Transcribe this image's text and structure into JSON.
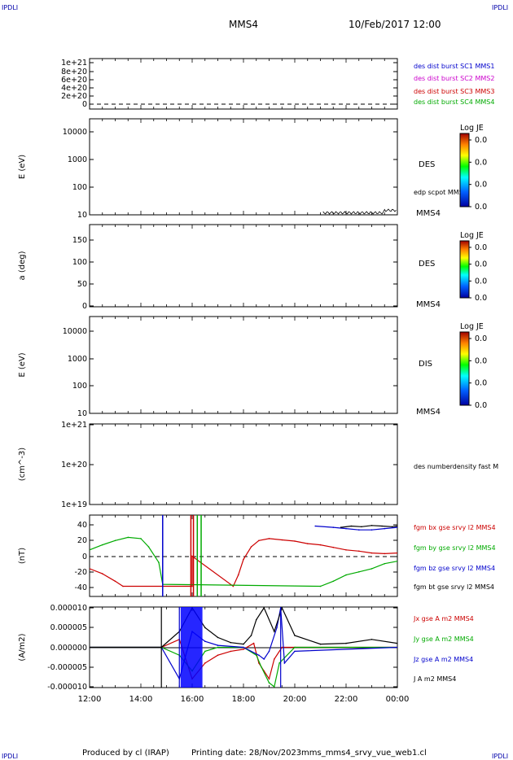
{
  "header": {
    "corner_label": "IPDLI",
    "mission": "MMS4",
    "datetime": "10/Feb/2017 12:00"
  },
  "footer": {
    "produced_by": "Produced by cl (IRAP)",
    "printing_date": "Printing date: 28/Nov/2023",
    "file_name": "mms_mms4_srvy_vue_web1.cl"
  },
  "x_axis": {
    "ticks": [
      "12:00",
      "14:00",
      "16:00",
      "18:00",
      "20:00",
      "22:00",
      "00:00"
    ]
  },
  "panels": [
    {
      "id": "burst",
      "ylabel": "",
      "yticks": [
        "1e+21",
        "8e+20",
        "6e+20",
        "4e+20",
        "2e+20",
        "0"
      ],
      "right_labels": [
        {
          "text": "des dist burst SC1 MMS1",
          "color": "#0000cc"
        },
        {
          "text": "des dist burst SC2 MMS2",
          "color": "#cc00cc"
        },
        {
          "text": "des dist burst SC3 MMS3",
          "color": "#cc0000"
        },
        {
          "text": "des dist burst SC4 MMS4",
          "color": "#00aa00"
        }
      ]
    },
    {
      "id": "des-energy",
      "ylabel": "E (eV)",
      "yticks": [
        "10000",
        "1000",
        "100",
        "10"
      ],
      "right_labels": [
        {
          "text": "DES",
          "color": "#000000"
        },
        {
          "text": "edp scpot MMS4",
          "color": "#000000"
        },
        {
          "text": "MMS4",
          "color": "#000000"
        }
      ],
      "colorbar": {
        "title": "Log JE",
        "ticks": [
          "0.0",
          "0.0",
          "0.0",
          "0.0"
        ]
      }
    },
    {
      "id": "des-pitch",
      "ylabel": "a (deg)",
      "yticks": [
        "150",
        "100",
        "50",
        "0"
      ],
      "right_labels": [
        {
          "text": "DES",
          "color": "#000000"
        },
        {
          "text": "MMS4",
          "color": "#000000"
        }
      ],
      "colorbar": {
        "title": "Log JE",
        "ticks": [
          "0.0",
          "0.0",
          "0.0",
          "0.0"
        ]
      }
    },
    {
      "id": "dis-energy",
      "ylabel": "E (eV)",
      "yticks": [
        "10000",
        "1000",
        "100",
        "10"
      ],
      "right_labels": [
        {
          "text": "DIS",
          "color": "#000000"
        },
        {
          "text": "MMS4",
          "color": "#000000"
        }
      ],
      "colorbar": {
        "title": "Log JE",
        "ticks": [
          "0.0",
          "0.0",
          "0.0",
          "0.0"
        ]
      }
    },
    {
      "id": "density",
      "ylabel": "(cm^-3)",
      "yticks": [
        "1e+21",
        "1e+20",
        "1e+19"
      ],
      "right_labels": [
        {
          "text": "des numberdensity fast M",
          "color": "#000000"
        }
      ]
    },
    {
      "id": "fgm",
      "ylabel": "(nT)",
      "yticks": [
        "40",
        "20",
        "0",
        "-20",
        "-40"
      ],
      "right_labels": [
        {
          "text": "fgm bx gse srvy l2 MMS4",
          "color": "#cc0000"
        },
        {
          "text": "fgm by gse srvy l2 MMS4",
          "color": "#00aa00"
        },
        {
          "text": "fgm bz gse srvy l2 MMS4",
          "color": "#0000cc"
        },
        {
          "text": "fgm bt gse srvy l2 MMS4",
          "color": "#000000"
        }
      ]
    },
    {
      "id": "current",
      "ylabel": "(A/m2)",
      "yticks": [
        "0.000010",
        "0.000005",
        "0.000000",
        "-0.000005",
        "-0.000010"
      ],
      "right_labels": [
        {
          "text": "Jx gse A m2 MMS4",
          "color": "#cc0000"
        },
        {
          "text": "Jy gse A m2 MMS4",
          "color": "#00aa00"
        },
        {
          "text": "Jz gse A m2 MMS4",
          "color": "#0000cc"
        },
        {
          "text": "J A m2 MMS4",
          "color": "#000000"
        }
      ]
    }
  ],
  "chart_data": [
    {
      "type": "line",
      "panel": "fgm",
      "ylim": [
        -50,
        50
      ],
      "xlim_hours": [
        12,
        24
      ],
      "series": [
        {
          "name": "fgm bx gse srvy l2 MMS4",
          "color": "#cc0000",
          "x": [
            12.0,
            12.5,
            13.0,
            13.3,
            16.0,
            16.0,
            17.6,
            17.8,
            18.0,
            18.3,
            18.6,
            19.0,
            19.5,
            20.0,
            20.5,
            21.0,
            21.5,
            22.0,
            22.5,
            23.0,
            23.5,
            24.0
          ],
          "y": [
            -20,
            -28,
            -40,
            -48,
            -48,
            0,
            -48,
            -30,
            -5,
            15,
            25,
            28,
            26,
            24,
            20,
            18,
            14,
            10,
            8,
            5,
            4,
            5
          ]
        },
        {
          "name": "fgm by gse srvy l2 MMS4",
          "color": "#00aa00",
          "x": [
            12.0,
            12.5,
            13.0,
            13.5,
            14.0,
            14.3,
            14.7,
            14.85,
            21.0,
            21.5,
            22.0,
            22.5,
            23.0,
            23.5,
            24.0
          ],
          "y": [
            10,
            18,
            25,
            30,
            28,
            15,
            -10,
            -45,
            -48,
            -40,
            -30,
            -25,
            -20,
            -12,
            -8
          ]
        },
        {
          "name": "fgm bz gse srvy l2 MMS4",
          "color": "#0000cc",
          "x": [
            20.8,
            21.5,
            22.0,
            22.5,
            23.0,
            23.5,
            24.0
          ],
          "y": [
            48,
            46,
            44,
            42,
            42,
            44,
            46
          ]
        },
        {
          "name": "fgm bt gse srvy l2 MMS4",
          "color": "#000000",
          "x": [
            21.8,
            22.2,
            22.6,
            23.0,
            23.4,
            23.8,
            24.0
          ],
          "y": [
            46,
            48,
            47,
            49,
            48,
            47,
            48
          ]
        }
      ]
    },
    {
      "type": "line",
      "panel": "current",
      "ylim": [
        -1e-05,
        1e-05
      ],
      "xlim_hours": [
        12,
        24
      ],
      "series": [
        {
          "name": "Jx gse A m2 MMS4",
          "color": "#cc0000",
          "x": [
            12.0,
            14.8,
            15.5,
            16.0,
            16.5,
            17.0,
            17.5,
            18.0,
            18.4,
            18.6,
            18.8,
            19.0,
            19.2,
            19.5,
            20.0,
            24.0
          ],
          "y": [
            0,
            0,
            2e-06,
            -8e-06,
            -4e-06,
            -2e-06,
            -1e-06,
            -5e-07,
            1e-06,
            -4e-06,
            -6e-06,
            -8e-06,
            -3e-06,
            0,
            0,
            0
          ]
        },
        {
          "name": "Jy gse A m2 MMS4",
          "color": "#00aa00",
          "x": [
            12.0,
            14.8,
            15.5,
            16.0,
            16.5,
            17.0,
            18.0,
            18.5,
            18.7,
            19.0,
            19.2,
            19.4,
            20.0,
            24.0
          ],
          "y": [
            0,
            0,
            -2e-06,
            -6e-06,
            -1e-06,
            0,
            0,
            -2e-06,
            -5e-06,
            -9e-06,
            -1e-05,
            -4e-06,
            0,
            0
          ]
        },
        {
          "name": "Jz gse A m2 MMS4",
          "color": "#0000cc",
          "x": [
            12.0,
            14.8,
            15.5,
            16.0,
            16.5,
            17.0,
            18.0,
            18.6,
            18.8,
            19.0,
            19.3,
            19.45,
            19.6,
            20.0,
            24.0
          ],
          "y": [
            0,
            0,
            -8e-06,
            4e-06,
            1.5e-06,
            5e-07,
            0,
            -2e-06,
            -3e-06,
            -1e-06,
            5e-06,
            1e-05,
            -4e-06,
            -1e-06,
            0
          ]
        },
        {
          "name": "J A m2 MMS4",
          "color": "#000000",
          "x": [
            12.0,
            14.8,
            15.5,
            16.0,
            16.5,
            17.0,
            17.5,
            18.0,
            18.3,
            18.5,
            18.8,
            19.2,
            19.5,
            20.0,
            21.0,
            22.0,
            23.0,
            24.0
          ],
          "y": [
            0,
            0,
            4e-06,
            1e-05,
            5e-06,
            2.5e-06,
            1.2e-06,
            8e-07,
            3e-06,
            7e-06,
            1e-05,
            4e-06,
            1e-05,
            3e-06,
            8e-07,
            1e-06,
            2e-06,
            1e-06
          ]
        }
      ]
    }
  ]
}
